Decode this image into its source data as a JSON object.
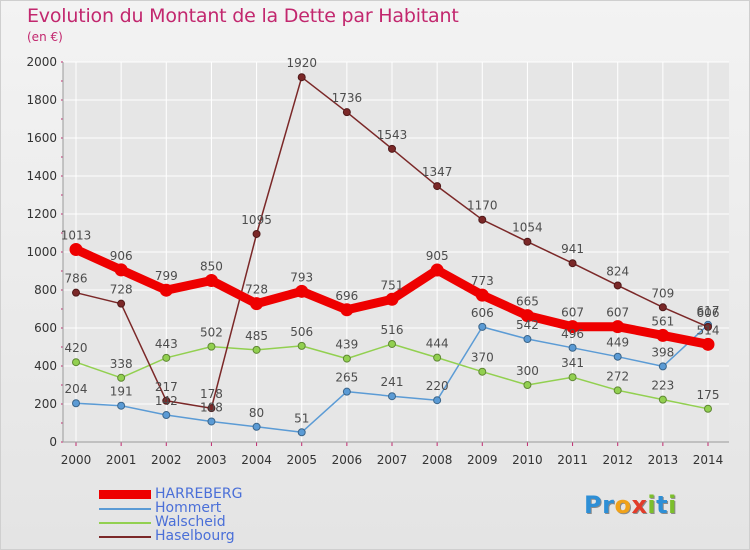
{
  "header": {
    "title": "Evolution du Montant de la Dette par Habitant",
    "subtitle": "(en €)"
  },
  "logo": {
    "text": "Proxiti",
    "letters": [
      {
        "char": "P",
        "color": "#2e8fd6"
      },
      {
        "char": "r",
        "color": "#2e8fd6"
      },
      {
        "char": "o",
        "color": "#f0a21a"
      },
      {
        "char": "x",
        "color": "#e23c2a"
      },
      {
        "char": "i",
        "color": "#7cbf2c"
      },
      {
        "char": "t",
        "color": "#2e8fd6"
      },
      {
        "char": "i",
        "color": "#7cbf2c"
      }
    ]
  },
  "colors": {
    "title": "#c2276e",
    "axis_tick": "#c2276e",
    "grid": "#ffffff",
    "legend_label": "#4a6fd8"
  },
  "chart_data": {
    "type": "line",
    "title": "Evolution du Montant de la Dette par Habitant",
    "subtitle": "(en €)",
    "xlabel": "",
    "ylabel": "",
    "ylim": [
      0,
      2000
    ],
    "yticks": [
      0,
      200,
      400,
      600,
      800,
      1000,
      1200,
      1400,
      1600,
      1800,
      2000
    ],
    "grid": true,
    "legend_position": "bottom-left",
    "categories": [
      "2000",
      "2001",
      "2002",
      "2003",
      "2004",
      "2005",
      "2006",
      "2007",
      "2008",
      "2009",
      "2010",
      "2011",
      "2012",
      "2013",
      "2014"
    ],
    "series": [
      {
        "name": "HARREBERG",
        "color": "#ee0000",
        "emphasis": true,
        "values": [
          1013,
          906,
          799,
          850,
          728,
          793,
          696,
          751,
          905,
          773,
          665,
          607,
          607,
          561,
          514
        ]
      },
      {
        "name": "Hommert",
        "color": "#5b9bd5",
        "emphasis": false,
        "values": [
          204,
          191,
          142,
          108,
          80,
          51,
          265,
          241,
          220,
          606,
          542,
          496,
          449,
          398,
          617
        ]
      },
      {
        "name": "Walscheid",
        "color": "#92d050",
        "emphasis": false,
        "values": [
          420,
          338,
          443,
          502,
          485,
          506,
          439,
          516,
          444,
          370,
          300,
          341,
          272,
          223,
          175
        ]
      },
      {
        "name": "Haselbourg",
        "color": "#7b2828",
        "emphasis": false,
        "values": [
          786,
          728,
          217,
          178,
          1095,
          1920,
          1736,
          1543,
          1347,
          1170,
          1054,
          941,
          824,
          709,
          606
        ]
      }
    ]
  }
}
